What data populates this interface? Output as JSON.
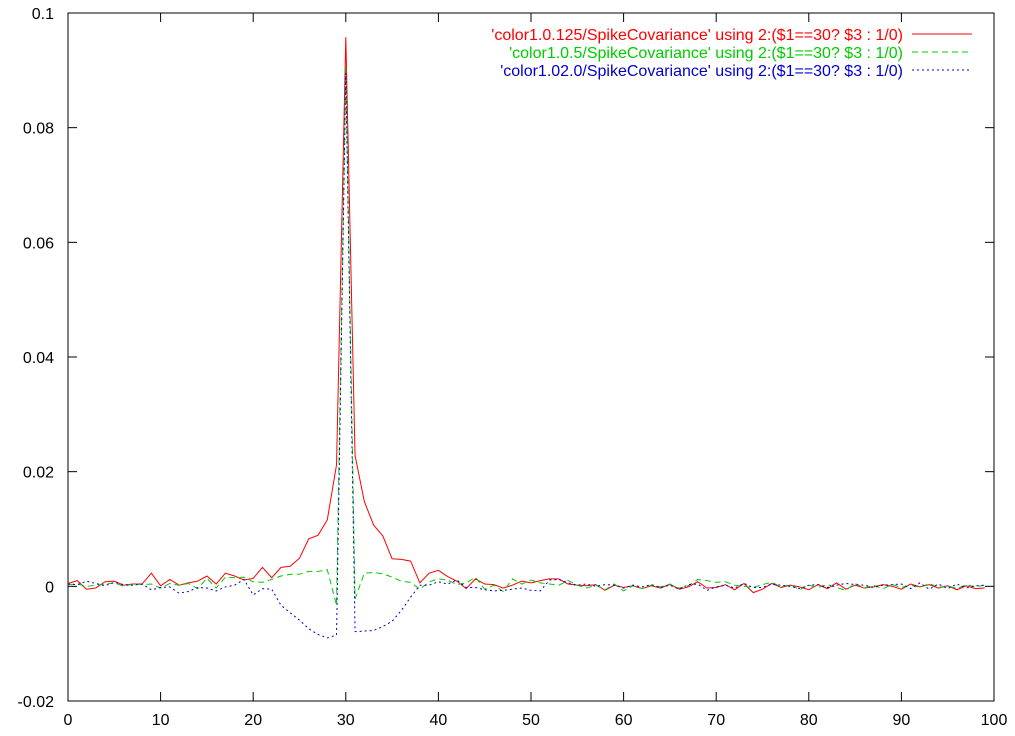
{
  "chart_data": {
    "type": "line",
    "title": "",
    "xlabel": "",
    "ylabel": "",
    "xlim": [
      0,
      100
    ],
    "ylim": [
      -0.02,
      0.1
    ],
    "xticks": [
      0,
      10,
      20,
      30,
      40,
      50,
      60,
      70,
      80,
      90,
      100
    ],
    "yticks": [
      -0.02,
      0,
      0.02,
      0.04,
      0.06,
      0.08,
      0.1
    ],
    "xtick_labels": [
      "0",
      "10",
      "20",
      "30",
      "40",
      "50",
      "60",
      "70",
      "80",
      "90",
      "100"
    ],
    "ytick_labels": [
      "-0.02",
      "0",
      "0.02",
      "0.04",
      "0.06",
      "0.08",
      "0.1"
    ],
    "grid": false,
    "legend_position": "top-right",
    "series": [
      {
        "name": "'color1.0.125/SpikeCovariance' using 2:($1==30? $3 : 1/0)",
        "color": "#ff0000",
        "dash": "solid",
        "x": [
          0,
          1,
          2,
          3,
          4,
          5,
          6,
          7,
          8,
          9,
          10,
          11,
          12,
          13,
          14,
          15,
          16,
          17,
          18,
          19,
          20,
          21,
          22,
          23,
          24,
          25,
          26,
          27,
          28,
          29,
          30,
          31,
          32,
          33,
          34,
          35,
          36,
          37,
          38,
          39,
          40,
          41,
          42,
          43,
          44,
          45,
          46,
          47,
          48,
          49,
          50,
          51,
          52,
          53,
          54,
          55,
          56,
          57,
          58,
          59,
          60,
          61,
          62,
          63,
          64,
          65,
          66,
          67,
          68,
          69,
          70,
          71,
          72,
          73,
          74,
          75,
          76,
          77,
          78,
          79,
          80,
          81,
          82,
          83,
          84,
          85,
          86,
          87,
          88,
          89,
          90,
          91,
          92,
          93,
          94,
          95,
          96,
          97,
          98,
          99
        ],
        "y": [
          0.0005,
          0.001,
          -0.0005,
          -0.0003,
          0.0008,
          0.0009,
          0.0002,
          0.0004,
          0.0004,
          0.0023,
          0.0001,
          0.0012,
          0.0002,
          0.0006,
          0.0009,
          0.0018,
          0.0004,
          0.0023,
          0.0018,
          0.0011,
          0.0014,
          0.0033,
          0.0015,
          0.0033,
          0.0035,
          0.0049,
          0.0083,
          0.0089,
          0.0116,
          0.0212,
          0.0958,
          0.0228,
          0.0148,
          0.0107,
          0.0088,
          0.0048,
          0.0047,
          0.0044,
          0.0006,
          0.0023,
          0.0028,
          0.0017,
          0.0009,
          -0.0004,
          0.0013,
          0.0004,
          0.0003,
          -0.0003,
          0.0002,
          0.0009,
          0.0006,
          0.001,
          0.0013,
          0.0013,
          0.0004,
          0.0002,
          0.0001,
          0.0003,
          -0.0007,
          0.0002,
          -0.0002,
          0.0001,
          -0.0004,
          0.0001,
          -0.0003,
          0.0004,
          -0.0005,
          -0.0001,
          0.0008,
          -0.0003,
          -0.0002,
          0.0003,
          -0.0006,
          0.0005,
          -0.0011,
          -0.0005,
          0.0005,
          -0.0002,
          0.0002,
          -0.0001,
          -0.0006,
          0.0003,
          -0.0004,
          0.0006,
          -0.0005,
          0.0002,
          -0.0003,
          -0.0001,
          0.0003,
          0.0,
          -0.0005,
          0.0004,
          -0.0001,
          0.0003,
          -0.0003,
          0.0001,
          -0.0006,
          0.0001,
          -0.0004,
          -0.0003
        ]
      },
      {
        "name": "'color1.0.5/SpikeCovariance' using 2:($1==30? $3 : 1/0)",
        "color": "#00cc00",
        "dash": "6,4",
        "x": [
          0,
          1,
          2,
          3,
          4,
          5,
          6,
          7,
          8,
          9,
          10,
          11,
          12,
          13,
          14,
          15,
          16,
          17,
          18,
          19,
          20,
          21,
          22,
          23,
          24,
          25,
          26,
          27,
          28,
          29,
          30,
          31,
          32,
          33,
          34,
          35,
          36,
          37,
          38,
          39,
          40,
          41,
          42,
          43,
          44,
          45,
          46,
          47,
          48,
          49,
          50,
          51,
          52,
          53,
          54,
          55,
          56,
          57,
          58,
          59,
          60,
          61,
          62,
          63,
          64,
          65,
          66,
          67,
          68,
          69,
          70,
          71,
          72,
          73,
          74,
          75,
          76,
          77,
          78,
          79,
          80,
          81,
          82,
          83,
          84,
          85,
          86,
          87,
          88,
          89,
          90,
          91,
          92,
          93,
          94,
          95,
          96,
          97,
          98,
          99
        ],
        "y": [
          0.0003,
          0.0004,
          0.0,
          0.0002,
          0.0004,
          0.0006,
          0.0,
          0.0004,
          0.0003,
          0.0004,
          -0.0003,
          0.0005,
          0.0002,
          0.0005,
          -0.0004,
          0.0014,
          -0.0003,
          0.0016,
          0.0015,
          0.0016,
          0.0008,
          0.0007,
          0.0012,
          0.0018,
          0.0021,
          0.0021,
          0.0026,
          0.0026,
          0.0029,
          -0.0033,
          0.0908,
          -0.0022,
          0.0023,
          0.0024,
          0.0022,
          0.0016,
          0.0009,
          0.0007,
          -0.0005,
          0.0008,
          0.0013,
          0.0011,
          0.0003,
          0.0006,
          0.0016,
          -0.0005,
          0.0002,
          -0.0009,
          0.0013,
          0.0004,
          0.0011,
          0.0006,
          0.0004,
          0.0002,
          0.001,
          0.0002,
          -0.0003,
          0.0002,
          -0.0006,
          0.0004,
          -0.0008,
          0.0001,
          -0.0004,
          0.0002,
          -0.0001,
          0.0003,
          -0.0003,
          0.0001,
          0.0012,
          0.001,
          0.0007,
          0.0008,
          0.0002,
          0.0,
          -0.0002,
          0.0003,
          0.0007,
          -0.0001,
          0.0003,
          -0.0006,
          0.0002,
          -0.0002,
          0.0003,
          -0.0002,
          -0.0007,
          0.0005,
          -0.0003,
          0.0002,
          -0.0004,
          0.0003,
          -0.0002,
          0.0002,
          -0.0002,
          0.0005,
          -0.0002,
          0.0001,
          -0.0004,
          0.0003,
          -0.0001,
          0.0002
        ]
      },
      {
        "name": "'color1.02.0/SpikeCovariance' using 2:($1==30? $3 : 1/0)",
        "color": "#0000cc",
        "dash": "2,3",
        "x": [
          0,
          1,
          2,
          3,
          4,
          5,
          6,
          7,
          8,
          9,
          10,
          11,
          12,
          13,
          14,
          15,
          16,
          17,
          18,
          19,
          20,
          21,
          22,
          23,
          24,
          25,
          26,
          27,
          28,
          29,
          30,
          31,
          32,
          33,
          34,
          35,
          36,
          37,
          38,
          39,
          40,
          41,
          42,
          43,
          44,
          45,
          46,
          47,
          48,
          49,
          50,
          51,
          52,
          53,
          54,
          55,
          56,
          57,
          58,
          59,
          60,
          61,
          62,
          63,
          64,
          65,
          66,
          67,
          68,
          69,
          70,
          71,
          72,
          73,
          74,
          75,
          76,
          77,
          78,
          79,
          80,
          81,
          82,
          83,
          84,
          85,
          86,
          87,
          88,
          89,
          90,
          91,
          92,
          93,
          94,
          95,
          96,
          97,
          98,
          99
        ],
        "y": [
          0.0004,
          0.0003,
          0.0009,
          0.0005,
          0.0001,
          0.0007,
          0.0003,
          0.0002,
          0.0004,
          -0.0006,
          -0.0002,
          -0.0001,
          -0.0012,
          -0.0009,
          -0.0002,
          -0.0003,
          -0.0008,
          -0.0001,
          0.0002,
          0.0012,
          -0.0015,
          -0.0004,
          -0.0005,
          -0.0033,
          -0.0046,
          -0.0059,
          -0.0074,
          -0.0084,
          -0.009,
          -0.0085,
          0.0895,
          -0.0079,
          -0.0078,
          -0.0077,
          -0.007,
          -0.0061,
          -0.0042,
          -0.0019,
          0.0002,
          0.0002,
          0.0008,
          0.0004,
          0.0011,
          -0.0002,
          -0.0002,
          -0.0006,
          -0.0008,
          -0.0007,
          -0.0005,
          -0.0003,
          -0.0007,
          -0.0008,
          0.0011,
          0.0012,
          0.0006,
          0.0002,
          0.0004,
          0.0,
          0.0003,
          0.0002,
          -0.0003,
          0.0002,
          -0.0001,
          0.0003,
          -0.0002,
          0.0002,
          -0.0005,
          0.0003,
          0.0004,
          -0.0007,
          -0.0001,
          0.0002,
          -0.0003,
          0.0005,
          -0.0002,
          -0.0002,
          0.0004,
          0.0002,
          0.0,
          -0.0004,
          0.0002,
          0.0003,
          -0.0002,
          0.0002,
          0.0005,
          0.0003,
          0.0002,
          -0.0002,
          0.0002,
          0.0003,
          0.0004,
          -0.0004,
          0.0006,
          -0.0005,
          0.0004,
          -0.0004,
          0.0004,
          -0.0003,
          0.0001,
          0.0002
        ]
      }
    ]
  }
}
